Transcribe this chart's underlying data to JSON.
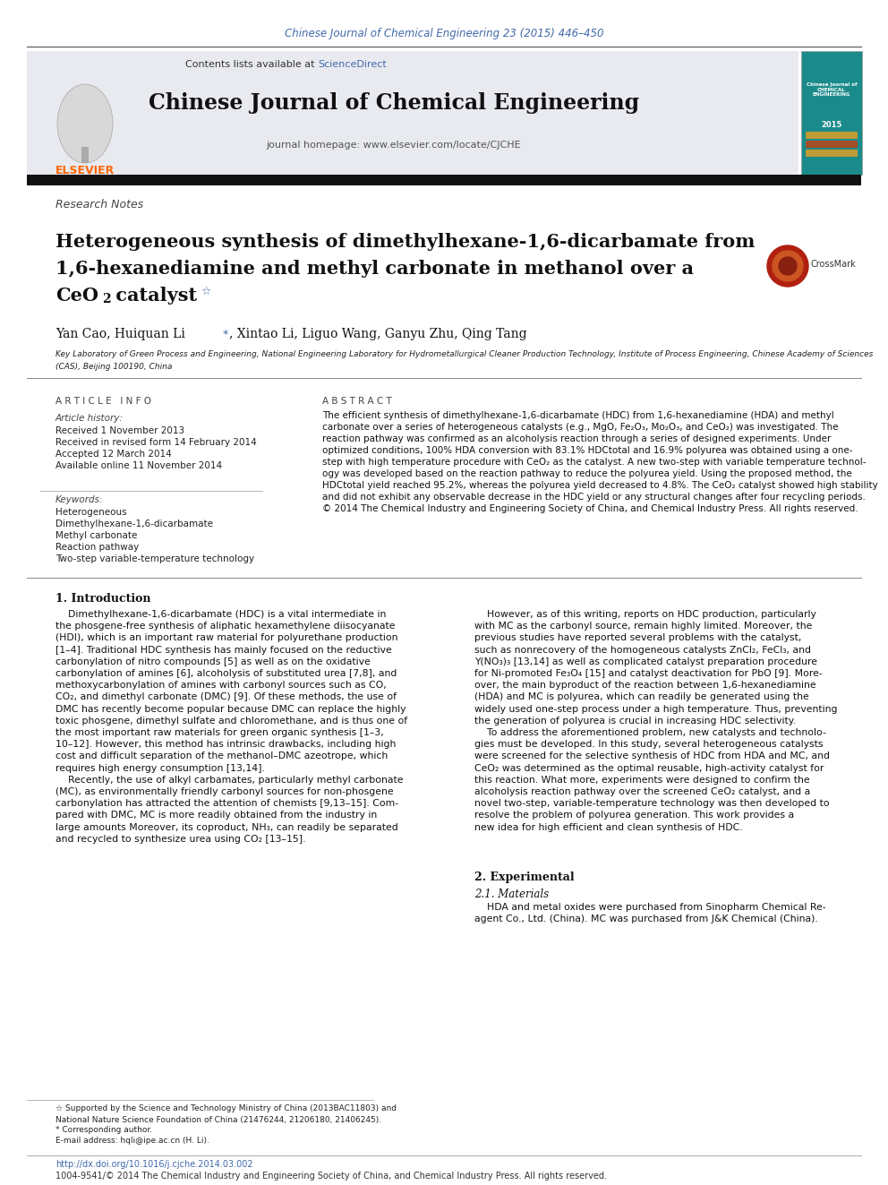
{
  "page_width": 9.92,
  "page_height": 13.23,
  "bg_color": "#ffffff",
  "top_citation": "Chinese Journal of Chemical Engineering 23 (2015) 446–450",
  "top_citation_color": "#4169aa",
  "journal_name": "Chinese Journal of Chemical Engineering",
  "contents_text": "Contents lists available at ",
  "sciencedirect_text": "ScienceDirect",
  "sciencedirect_color": "#4169aa",
  "journal_homepage": "journal homepage: www.elsevier.com/locate/CJCHE",
  "header_bg": "#e8eaf0",
  "section_label": "Research Notes",
  "article_title_line1": "Heterogeneous synthesis of dimethylhexane-1,6-dicarbamate from",
  "article_title_line2": "1,6-hexanediamine and methyl carbonate in methanol over a",
  "article_title_line3": "CeO₂ catalyst",
  "authors_pre": "Yan Cao, Huiquan Li ",
  "authors_post": ", Xintao Li, Liguo Wang, Ganyu Zhu, Qing Tang",
  "affiliation1": "Key Laboratory of Green Process and Engineering, National Engineering Laboratory for Hydrometallurgical Cleaner Production Technology, Institute of Process Engineering, Chinese Academy of Sciences",
  "affiliation2": "(CAS), Beijing 100190, China",
  "article_info_header": "A R T I C L E   I N F O",
  "article_history_header": "Article history:",
  "received1": "Received 1 November 2013",
  "received2": "Received in revised form 14 February 2014",
  "accepted": "Accepted 12 March 2014",
  "available": "Available online 11 November 2014",
  "keywords_header": "Keywords:",
  "keywords": [
    "Heterogeneous",
    "Dimethylhexane-1,6-dicarbamate",
    "Methyl carbonate",
    "Reaction pathway",
    "Two-step variable-temperature technology"
  ],
  "abstract_header": "A B S T R A C T",
  "abstract_lines": [
    "The efficient synthesis of dimethylhexane-1,6-dicarbamate (HDC) from 1,6-hexanediamine (HDA) and methyl",
    "carbonate over a series of heterogeneous catalysts (e.g., MgO, Fe₂O₃, Mo₂O₃, and CeO₂) was investigated. The",
    "reaction pathway was confirmed as an alcoholysis reaction through a series of designed experiments. Under",
    "optimized conditions, 100% HDA conversion with 83.1% HDCtotal and 16.9% polyurea was obtained using a one-",
    "step with high temperature procedure with CeO₂ as the catalyst. A new two-step with variable temperature technol-",
    "ogy was developed based on the reaction pathway to reduce the polyurea yield. Using the proposed method, the",
    "HDCtotal yield reached 95.2%, whereas the polyurea yield decreased to 4.8%. The CeO₂ catalyst showed high stability",
    "and did not exhibit any observable decrease in the HDC yield or any structural changes after four recycling periods.",
    "© 2014 The Chemical Industry and Engineering Society of China, and Chemical Industry Press. All rights reserved."
  ],
  "intro_header": "1. Introduction",
  "intro1_lines": [
    "    Dimethylhexane-1,6-dicarbamate (HDC) is a vital intermediate in",
    "the phosgene-free synthesis of aliphatic hexamethylene diisocyanate",
    "(HDI), which is an important raw material for polyurethane production",
    "[1–4]. Traditional HDC synthesis has mainly focused on the reductive",
    "carbonylation of nitro compounds [5] as well as on the oxidative",
    "carbonylation of amines [6], alcoholysis of substituted urea [7,8], and",
    "methoxycarbonylation of amines with carbonyl sources such as CO,",
    "CO₂, and dimethyl carbonate (DMC) [9]. Of these methods, the use of",
    "DMC has recently become popular because DMC can replace the highly",
    "toxic phosgene, dimethyl sulfate and chloromethane, and is thus one of",
    "the most important raw materials for green organic synthesis [1–3,",
    "10–12]. However, this method has intrinsic drawbacks, including high",
    "cost and difficult separation of the methanol–DMC azeotrope, which",
    "requires high energy consumption [13,14].",
    "    Recently, the use of alkyl carbamates, particularly methyl carbonate",
    "(MC), as environmentally friendly carbonyl sources for non-phosgene",
    "carbonylation has attracted the attention of chemists [9,13–15]. Com-",
    "pared with DMC, MC is more readily obtained from the industry in",
    "large amounts Moreover, its coproduct, NH₃, can readily be separated",
    "and recycled to synthesize urea using CO₂ [13–15]."
  ],
  "intro2_lines": [
    "    However, as of this writing, reports on HDC production, particularly",
    "with MC as the carbonyl source, remain highly limited. Moreover, the",
    "previous studies have reported several problems with the catalyst,",
    "such as nonrecovery of the homogeneous catalysts ZnCl₂, FeCl₃, and",
    "Y(NO₃)₃ [13,14] as well as complicated catalyst preparation procedure",
    "for Ni-promoted Fe₃O₄ [15] and catalyst deactivation for PbO [9]. More-",
    "over, the main byproduct of the reaction between 1,6-hexanediamine",
    "(HDA) and MC is polyurea, which can readily be generated using the",
    "widely used one-step process under a high temperature. Thus, preventing",
    "the generation of polyurea is crucial in increasing HDC selectivity.",
    "    To address the aforementioned problem, new catalysts and technolo-",
    "gies must be developed. In this study, several heterogeneous catalysts",
    "were screened for the selective synthesis of HDC from HDA and MC, and",
    "CeO₂ was determined as the optimal reusable, high-activity catalyst for",
    "this reaction. What more, experiments were designed to confirm the",
    "alcoholysis reaction pathway over the screened CeO₂ catalyst, and a",
    "novel two-step, variable-temperature technology was then developed to",
    "resolve the problem of polyurea generation. This work provides a",
    "new idea for high efficient and clean synthesis of HDC."
  ],
  "section2_header": "2. Experimental",
  "section21_header": "2.1. Materials",
  "section21_lines": [
    "    HDA and metal oxides were purchased from Sinopharm Chemical Re-",
    "agent Co., Ltd. (China). MC was purchased from J&K Chemical (China)."
  ],
  "footnote1a": "☆ Supported by the Science and Technology Ministry of China (2013BAC11803) and",
  "footnote1b": "National Nature Science Foundation of China (21476244, 21206180, 21406245).",
  "footnote2": "* Corresponding author.",
  "footnote3": "E-mail address: hqli@ipe.ac.cn (H. Li).",
  "footer_doi": "http://dx.doi.org/10.1016/j.cjche.2014.03.002",
  "footer_issn": "1004-9541/© 2014 The Chemical Industry and Engineering Society of China, and Chemical Industry Press. All rights reserved.",
  "doi_color": "#4169aa"
}
